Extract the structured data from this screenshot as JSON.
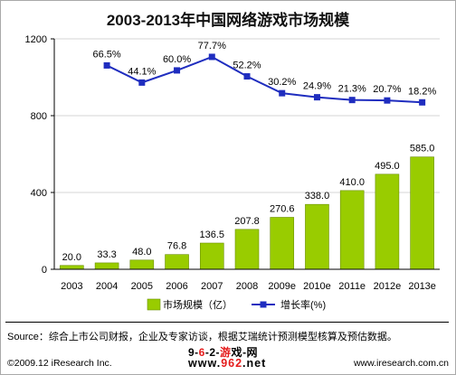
{
  "title": "2003-2013年中国网络游戏市场规模",
  "chart_data": {
    "type": "bar",
    "title": "2003-2013年中国网络游戏市场规模",
    "categories": [
      "2003",
      "2004",
      "2005",
      "2006",
      "2007",
      "2008",
      "2009e",
      "2010e",
      "2011e",
      "2012e",
      "2013e"
    ],
    "series": [
      {
        "name": "市场规模（亿）",
        "type": "bar",
        "values": [
          20.0,
          33.3,
          48.0,
          76.8,
          136.5,
          207.8,
          270.6,
          338.0,
          410.0,
          495.0,
          585.0
        ],
        "labels": [
          "20.0",
          "33.3",
          "48.0",
          "76.8",
          "136.5",
          "207.8",
          "270.6",
          "338.0",
          "410.0",
          "495.0",
          "585.0"
        ],
        "color": "#99cc00"
      },
      {
        "name": "增长率(%)",
        "type": "line",
        "values": [
          null,
          66.5,
          44.1,
          60.0,
          77.7,
          52.2,
          30.2,
          24.9,
          21.3,
          20.7,
          18.2
        ],
        "labels": [
          "",
          "66.5%",
          "44.1%",
          "60.0%",
          "77.7%",
          "52.2%",
          "30.2%",
          "24.9%",
          "21.3%",
          "20.7%",
          "18.2%"
        ],
        "color": "#1f2dbf"
      }
    ],
    "yaxis": {
      "ticks": [
        "0",
        "400",
        "800",
        "1200"
      ],
      "ylim": [
        0,
        1200
      ]
    },
    "legend_position": "bottom"
  },
  "source": "Source：综合上市公司财报，企业及专家访谈，根据艾瑞统计预测模型核算及预估数据。",
  "copyright": "©2009.12 iResearch Inc.",
  "site": "www.iresearch.com.cn",
  "watermark": {
    "line1_a": "9-",
    "line1_b": "6",
    "line1_c": "-2-",
    "line1_d": "游",
    "line1_e": "戏",
    "line1_f": "-网",
    "line2_a": "www.",
    "line2_b": "962",
    "line2_c": ".net"
  }
}
